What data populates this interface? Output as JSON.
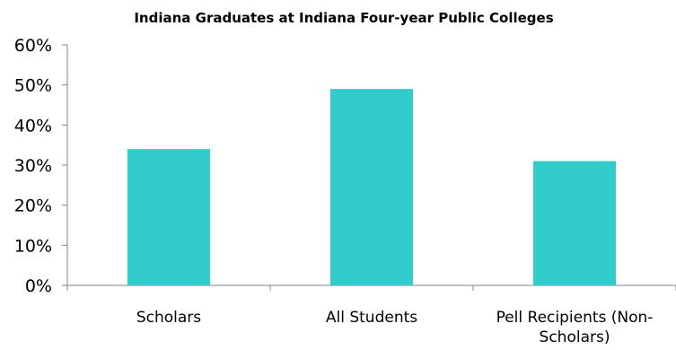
{
  "chart_data": {
    "type": "bar",
    "title": "Indiana Graduates at Indiana Four-year Public Colleges",
    "categories": [
      "Scholars",
      "All Students",
      "Pell Recipients (Non-Scholars)"
    ],
    "category_label_lines": [
      [
        "Scholars"
      ],
      [
        "All Students"
      ],
      [
        "Pell Recipients (Non-",
        "Scholars)"
      ]
    ],
    "values": [
      34,
      49,
      31
    ],
    "value_unit": "%",
    "xlabel": "",
    "ylabel": "",
    "ylim": [
      0,
      60
    ],
    "yticks": [
      0,
      10,
      20,
      30,
      40,
      50,
      60
    ],
    "ytick_labels": [
      "0%",
      "10%",
      "20%",
      "30%",
      "40%",
      "50%",
      "60%"
    ],
    "grid": false,
    "legend": "none",
    "bar_color": "#33CCCC",
    "axis_color": "#868686"
  }
}
